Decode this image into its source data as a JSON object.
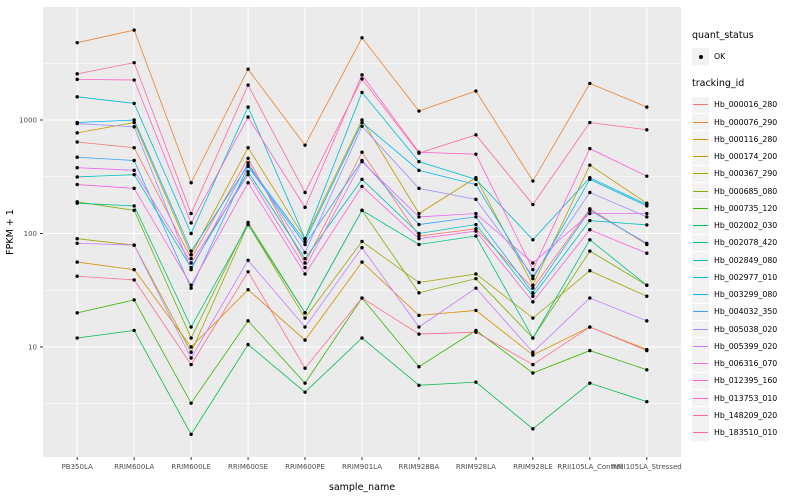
{
  "chart_data": {
    "type": "line",
    "title": "",
    "xlabel": "sample_name",
    "ylabel": "FPKM + 1",
    "legend_position": "right",
    "grid": true,
    "panel_background": "#EBEBEB",
    "grid_color": "#FFFFFF",
    "point_color": "#000000",
    "axis_text_color": "#4D4D4D",
    "x_axis": {
      "label": "sample_name",
      "categories": [
        "PB350LA",
        "RRIM600LA",
        "RRIM600LE",
        "RRIM600SE",
        "RRIM600PE",
        "RRIM901LA",
        "RRIM928BA",
        "RRIM928LA",
        "RRIM928LE",
        "RRII105LA_Control",
        "RRII105LA_Stressed"
      ]
    },
    "y_axis": {
      "label": "FPKM + 1",
      "scale": "log10",
      "tick_labels": [
        "10",
        "100",
        "1000"
      ],
      "tick_values": [
        10,
        100,
        1000
      ],
      "minor_tick_values": [
        3.162,
        31.62,
        316.2,
        3162
      ],
      "range": [
        1.5,
        9000
      ]
    },
    "series": [
      {
        "name": "Hb_000016_280",
        "color": "#F8766D",
        "values": [
          640,
          570,
          60,
          460,
          55,
          520,
          95,
          110,
          33,
          165,
          80
        ]
      },
      {
        "name": "Hb_000076_290",
        "color": "#EA8331",
        "values": [
          4800,
          6200,
          280,
          2800,
          600,
          5300,
          1200,
          1800,
          290,
          2100,
          1300
        ]
      },
      {
        "name": "Hb_000116_280",
        "color": "#D89000",
        "values": [
          56,
          48,
          10,
          32,
          11.5,
          56,
          19,
          21,
          8.5,
          15,
          9.5
        ]
      },
      {
        "name": "Hb_000174_200",
        "color": "#C09B00",
        "values": [
          770,
          950,
          65,
          570,
          90,
          1000,
          150,
          310,
          35,
          400,
          185
        ]
      },
      {
        "name": "Hb_000367_290",
        "color": "#A3A500",
        "values": [
          90,
          79,
          9,
          120,
          18,
          85,
          37,
          44,
          18,
          47,
          28
        ]
      },
      {
        "name": "Hb_000685_080",
        "color": "#7CAE00",
        "values": [
          190,
          160,
          12,
          125,
          20,
          160,
          30,
          40,
          12,
          70,
          35
        ]
      },
      {
        "name": "Hb_000735_120",
        "color": "#39B600",
        "values": [
          20,
          26,
          3.2,
          17,
          4.8,
          27,
          6.7,
          14,
          5.9,
          9.3,
          6.3
        ]
      },
      {
        "name": "Hb_002002_030",
        "color": "#00BB4E",
        "values": [
          12,
          14,
          1.7,
          10.5,
          4,
          12,
          4.6,
          4.9,
          1.9,
          4.8,
          3.3
        ]
      },
      {
        "name": "Hb_002078_420",
        "color": "#00C087",
        "values": [
          185,
          175,
          15,
          120,
          20,
          160,
          80,
          95,
          12,
          88,
          35
        ]
      },
      {
        "name": "Hb_002849_080",
        "color": "#00C0B2",
        "values": [
          315,
          330,
          50,
          350,
          60,
          300,
          100,
          120,
          28,
          130,
          119
        ]
      },
      {
        "name": "Hb_002977_010",
        "color": "#00BCD6",
        "values": [
          1600,
          1400,
          100,
          1300,
          90,
          1750,
          430,
          300,
          88,
          310,
          180
        ]
      },
      {
        "name": "Hb_003299_080",
        "color": "#00B4EF",
        "values": [
          950,
          1000,
          70,
          400,
          85,
          950,
          360,
          270,
          40,
          300,
          175
        ]
      },
      {
        "name": "Hb_004032_350",
        "color": "#35A2FF",
        "values": [
          470,
          440,
          33,
          390,
          80,
          440,
          120,
          140,
          30,
          160,
          82
        ]
      },
      {
        "name": "Hb_005038_020",
        "color": "#9590FF",
        "values": [
          930,
          870,
          48,
          420,
          68,
          880,
          250,
          200,
          42,
          230,
          140
        ]
      },
      {
        "name": "Hb_005399_020",
        "color": "#C77CFF",
        "values": [
          82,
          79,
          8,
          58,
          15,
          75,
          15,
          33,
          9,
          27,
          17
        ]
      },
      {
        "name": "Hb_006316_070",
        "color": "#E76BF3",
        "values": [
          380,
          360,
          55,
          330,
          50,
          430,
          140,
          150,
          55,
          150,
          150
        ]
      },
      {
        "name": "Hb_012395_160",
        "color": "#FA62DB",
        "values": [
          270,
          250,
          35,
          280,
          44,
          260,
          90,
          105,
          25,
          108,
          67
        ]
      },
      {
        "name": "Hb_013753_010",
        "color": "#FF61C9",
        "values": [
          2280,
          2250,
          124,
          1060,
          170,
          2500,
          520,
          500,
          48,
          560,
          320
        ]
      },
      {
        "name": "Hb_148209_020",
        "color": "#FF67A4",
        "values": [
          2550,
          3200,
          150,
          2030,
          230,
          2300,
          510,
          740,
          180,
          950,
          820
        ]
      },
      {
        "name": "Hb_183510_010",
        "color": "#FF6C91",
        "values": [
          42,
          39,
          7,
          46,
          6.5,
          27,
          13,
          13.5,
          7,
          15,
          9.3
        ]
      }
    ]
  },
  "legend": {
    "quant_status": {
      "title": "quant_status",
      "items": [
        {
          "label": "OK",
          "marker": "point"
        }
      ]
    },
    "tracking_id": {
      "title": "tracking_id"
    }
  }
}
